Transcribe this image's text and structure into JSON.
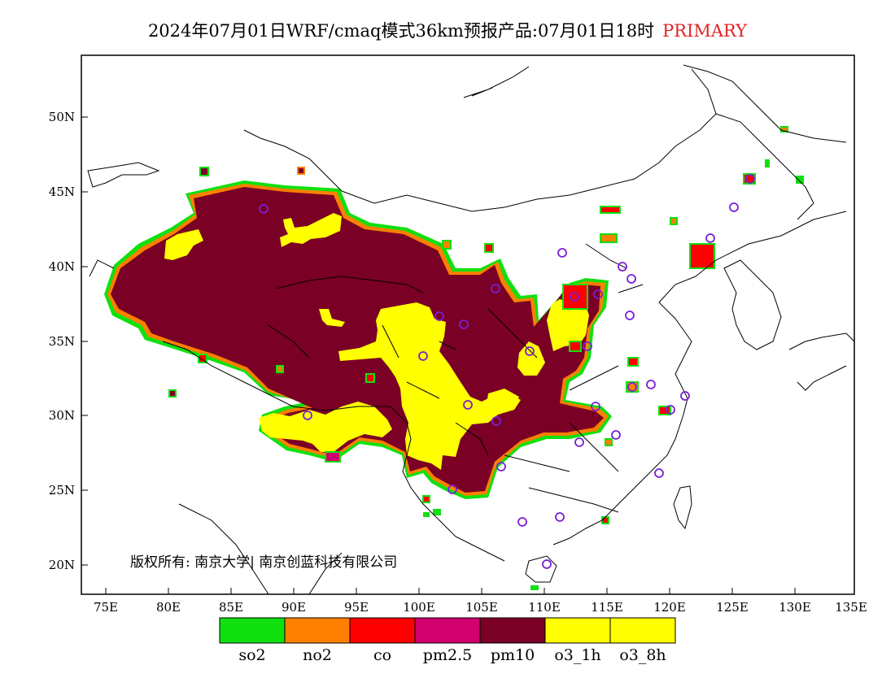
{
  "title": {
    "main": "2024年07月01日WRF/cmaq模式36km预报产品:07月01日18时",
    "tag": "PRIMARY",
    "tag_color": "#e02424"
  },
  "map": {
    "lat_labels": [
      "50N",
      "45N",
      "40N",
      "35N",
      "30N",
      "25N",
      "20N"
    ],
    "lon_labels": [
      "75E",
      "80E",
      "85E",
      "90E",
      "95E",
      "100E",
      "105E",
      "110E",
      "115E",
      "120E",
      "125E",
      "130E",
      "135E"
    ],
    "copyright": "版权所有: 南京大学| 南京创蓝科技有限公司"
  },
  "legend": {
    "items": [
      {
        "label": "so2",
        "color": "#10e010"
      },
      {
        "label": "no2",
        "color": "#ff8000"
      },
      {
        "label": "co",
        "color": "#ff0000"
      },
      {
        "label": "pm2.5",
        "color": "#d0006f"
      },
      {
        "label": "pm10",
        "color": "#7a0026"
      },
      {
        "label": "o3_1h",
        "color": "#ffff00"
      },
      {
        "label": "o3_8h",
        "color": "#ffff00"
      }
    ]
  },
  "colors": {
    "pm10": "#7a0026",
    "o3": "#ffff00",
    "border_co": "#ff0000",
    "border_no2": "#ff8000",
    "border_so2": "#10e010",
    "station": "#7a1fd6"
  }
}
